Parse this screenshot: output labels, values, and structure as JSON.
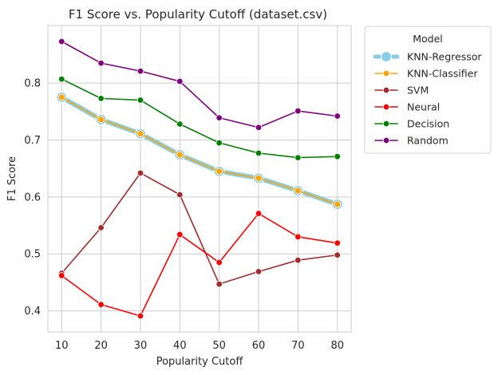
{
  "chart_data": {
    "type": "line",
    "title": "F1 Score vs. Popularity Cutoff (dataset.csv)",
    "xlabel": "Popularity Cutoff",
    "ylabel": "F1 Score",
    "x": [
      10,
      20,
      30,
      40,
      50,
      60,
      70,
      80
    ],
    "x_ticks": [
      "10",
      "20",
      "30",
      "40",
      "50",
      "60",
      "70",
      "80"
    ],
    "y_ticks": [
      "0.4",
      "0.5",
      "0.6",
      "0.7",
      "0.8"
    ],
    "y_tick_values": [
      0.4,
      0.5,
      0.6,
      0.7,
      0.8
    ],
    "xlim": [
      6.5,
      83.5
    ],
    "ylim": [
      0.363,
      0.901
    ],
    "grid": true,
    "legend_title": "Model",
    "legend_position": "outside-top-right",
    "series": [
      {
        "name": "KNN-Regressor",
        "color": "#87ceeb",
        "values": [
          0.775,
          0.736,
          0.711,
          0.674,
          0.645,
          0.633,
          0.611,
          0.587
        ]
      },
      {
        "name": "KNN-Classifier",
        "color": "#ffa500",
        "values": [
          0.775,
          0.736,
          0.711,
          0.674,
          0.645,
          0.633,
          0.611,
          0.587
        ]
      },
      {
        "name": "SVM",
        "color": "#a52a2a",
        "values": [
          0.466,
          0.546,
          0.642,
          0.604,
          0.447,
          0.469,
          0.489,
          0.498
        ]
      },
      {
        "name": "Neural",
        "color": "#ff0000",
        "values": [
          0.462,
          0.411,
          0.391,
          0.534,
          0.485,
          0.571,
          0.53,
          0.519
        ]
      },
      {
        "name": "Decision",
        "color": "#008000",
        "values": [
          0.807,
          0.773,
          0.77,
          0.728,
          0.695,
          0.677,
          0.669,
          0.671
        ]
      },
      {
        "name": "Random",
        "color": "#800080",
        "values": [
          0.873,
          0.835,
          0.821,
          0.803,
          0.739,
          0.722,
          0.751,
          0.742
        ]
      }
    ]
  }
}
